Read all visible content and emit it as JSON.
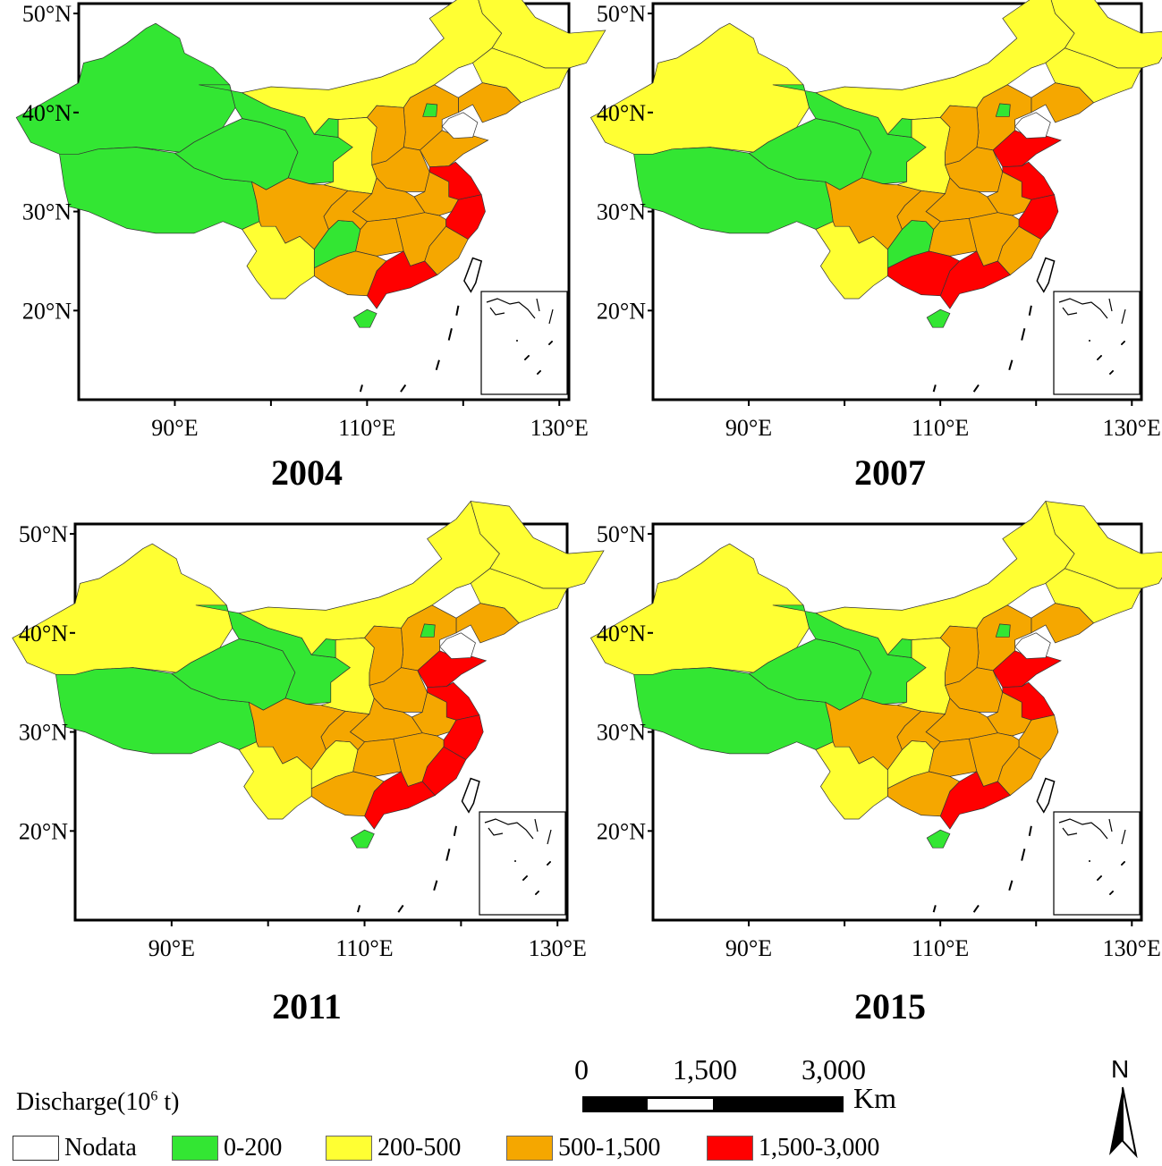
{
  "panels": [
    {
      "year": "2004",
      "lat_labels": [
        "50°N",
        "40°N",
        "30°N",
        "20°N"
      ],
      "lon_labels": [
        "90°E",
        "110°E",
        "130°E"
      ],
      "regions": {
        "xinjiang": "low",
        "tibet": "low",
        "qinghai": "low",
        "gansu": "low",
        "ningxia": "low",
        "innermongolia": "mid",
        "heilongjiang": "mid",
        "jilin": "mid",
        "liaoning": "high",
        "hebei": "high",
        "beijing": "low",
        "shandong": "high",
        "shanxi": "high",
        "shaanxi": "mid",
        "henan": "high",
        "sichuan": "high",
        "chongqing": "high",
        "yunnan": "mid",
        "guizhou": "low",
        "hubei": "high",
        "hunan": "high",
        "jiangxi": "high",
        "anhui": "high",
        "jiangsu": "top",
        "zhejiang": "top",
        "fujian": "high",
        "guangdong": "top",
        "guangxi": "high",
        "hainan": "low"
      }
    },
    {
      "year": "2007",
      "lat_labels": [
        "50°N",
        "40°N",
        "30°N",
        "20°N"
      ],
      "lon_labels": [
        "90°E",
        "110°E",
        "130°E"
      ],
      "regions": {
        "xinjiang": "mid",
        "tibet": "low",
        "qinghai": "low",
        "gansu": "low",
        "ningxia": "low",
        "innermongolia": "mid",
        "heilongjiang": "mid",
        "jilin": "mid",
        "liaoning": "high",
        "hebei": "high",
        "beijing": "low",
        "shandong": "top",
        "shanxi": "high",
        "shaanxi": "mid",
        "henan": "high",
        "sichuan": "high",
        "chongqing": "high",
        "yunnan": "mid",
        "guizhou": "low",
        "hubei": "high",
        "hunan": "high",
        "jiangxi": "high",
        "anhui": "high",
        "jiangsu": "top",
        "zhejiang": "top",
        "fujian": "high",
        "guangdong": "top",
        "guangxi": "top",
        "hainan": "low"
      }
    },
    {
      "year": "2011",
      "lat_labels": [
        "50°N",
        "40°N",
        "30°N",
        "20°N"
      ],
      "lon_labels": [
        "90°E",
        "110°E",
        "130°E"
      ],
      "regions": {
        "xinjiang": "mid",
        "tibet": "low",
        "qinghai": "low",
        "gansu": "low",
        "ningxia": "low",
        "innermongolia": "mid",
        "heilongjiang": "mid",
        "jilin": "mid",
        "liaoning": "high",
        "hebei": "high",
        "beijing": "low",
        "shandong": "top",
        "shanxi": "high",
        "shaanxi": "mid",
        "henan": "high",
        "sichuan": "high",
        "chongqing": "high",
        "yunnan": "mid",
        "guizhou": "mid",
        "hubei": "high",
        "hunan": "high",
        "jiangxi": "high",
        "anhui": "high",
        "jiangsu": "top",
        "zhejiang": "top",
        "fujian": "top",
        "guangdong": "top",
        "guangxi": "high",
        "hainan": "low"
      }
    },
    {
      "year": "2015",
      "lat_labels": [
        "50°N",
        "40°N",
        "30°N",
        "20°N"
      ],
      "lon_labels": [
        "90°E",
        "110°E",
        "130°E"
      ],
      "regions": {
        "xinjiang": "mid",
        "tibet": "low",
        "qinghai": "low",
        "gansu": "low",
        "ningxia": "low",
        "innermongolia": "mid",
        "heilongjiang": "mid",
        "jilin": "mid",
        "liaoning": "high",
        "hebei": "high",
        "beijing": "low",
        "shandong": "top",
        "shanxi": "high",
        "shaanxi": "mid",
        "henan": "high",
        "sichuan": "high",
        "chongqing": "high",
        "yunnan": "mid",
        "guizhou": "mid",
        "hubei": "high",
        "hunan": "high",
        "jiangxi": "high",
        "anhui": "high",
        "jiangsu": "top",
        "zhejiang": "high",
        "fujian": "high",
        "guangdong": "top",
        "guangxi": "high",
        "hainan": "low"
      }
    }
  ],
  "legend": {
    "title": "Discharge(10",
    "title_sup": "6",
    "title_end": " t)",
    "items": [
      {
        "key": "nodata",
        "label": "Nodata",
        "color": "#ffffff"
      },
      {
        "key": "low",
        "label": "0-200",
        "color": "#33e633"
      },
      {
        "key": "mid",
        "label": "200-500",
        "color": "#ffff33"
      },
      {
        "key": "high",
        "label": "500-1,500",
        "color": "#f5a700"
      },
      {
        "key": "top",
        "label": "1,500-3,000",
        "color": "#ff0000"
      }
    ]
  },
  "scale": {
    "labels": [
      "0",
      "1,500",
      "3,000"
    ],
    "unit": "Km"
  },
  "north_label": "N"
}
